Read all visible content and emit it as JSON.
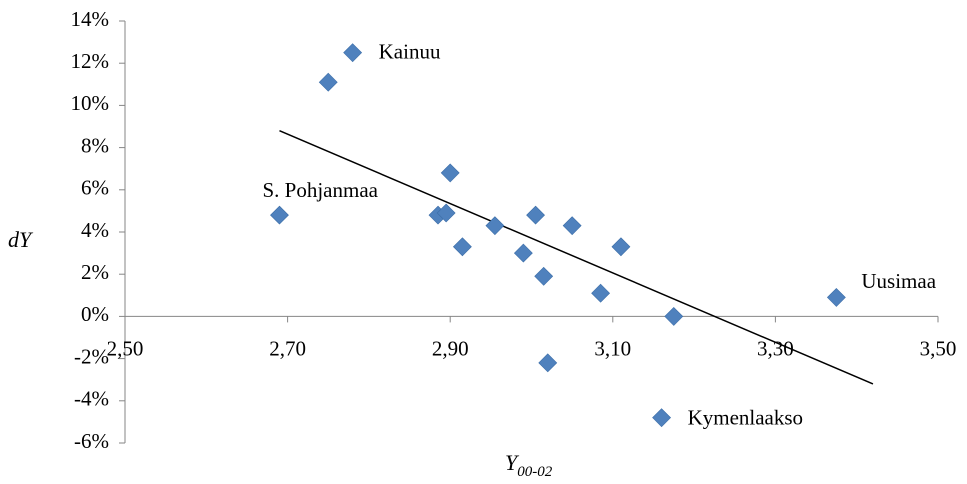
{
  "chart_data": {
    "type": "scatter",
    "xlabel": "Y",
    "xlabel_sub": "00-02",
    "ylabel": "dY",
    "xlim": [
      2.5,
      3.5
    ],
    "ylim": [
      -6,
      14
    ],
    "x_ticks": [
      2.5,
      2.7,
      2.9,
      3.1,
      3.3,
      3.5
    ],
    "x_tick_labels": [
      "2,50",
      "2,70",
      "2,90",
      "3,10",
      "3,30",
      "3,50"
    ],
    "y_ticks": [
      -6,
      -4,
      -2,
      0,
      2,
      4,
      6,
      8,
      10,
      12,
      14
    ],
    "y_tick_labels": [
      "-6%",
      "-4%",
      "-2%",
      "0%",
      "2%",
      "4%",
      "6%",
      "8%",
      "10%",
      "12%",
      "14%"
    ],
    "grid": false,
    "legend": "none",
    "marker_color": "#4F81BD",
    "points": [
      {
        "x": 2.75,
        "y": 11.1
      },
      {
        "x": 2.78,
        "y": 12.5,
        "label": "Kainuu"
      },
      {
        "x": 2.69,
        "y": 4.8,
        "label": "S. Pohjanmaa"
      },
      {
        "x": 2.885,
        "y": 4.8
      },
      {
        "x": 2.895,
        "y": 4.9
      },
      {
        "x": 2.9,
        "y": 6.8
      },
      {
        "x": 2.915,
        "y": 3.3
      },
      {
        "x": 2.955,
        "y": 4.3
      },
      {
        "x": 2.99,
        "y": 3.0
      },
      {
        "x": 3.005,
        "y": 4.8
      },
      {
        "x": 3.015,
        "y": 1.9
      },
      {
        "x": 3.02,
        "y": -2.2
      },
      {
        "x": 3.05,
        "y": 4.3
      },
      {
        "x": 3.085,
        "y": 1.1
      },
      {
        "x": 3.11,
        "y": 3.3
      },
      {
        "x": 3.175,
        "y": 0.0
      },
      {
        "x": 3.375,
        "y": 0.9,
        "label": "Uusimaa"
      }
    ],
    "trendline": {
      "x": [
        2.69,
        3.42
      ],
      "y": [
        8.8,
        -3.2
      ]
    },
    "annotations": [
      {
        "text": "Kainuu",
        "x": 2.78,
        "y": 12.5,
        "anchor": "right-of-point"
      },
      {
        "text": "S. Pohjanmaa",
        "x": 2.69,
        "y": 4.8,
        "anchor": "above-right"
      },
      {
        "text": "Uusimaa",
        "x": 3.375,
        "y": 0.9,
        "anchor": "above-right"
      },
      {
        "text": "Kymenlaakso",
        "x": 3.16,
        "y": -4.8,
        "anchor": "right-of-marker",
        "marker": true
      }
    ]
  }
}
